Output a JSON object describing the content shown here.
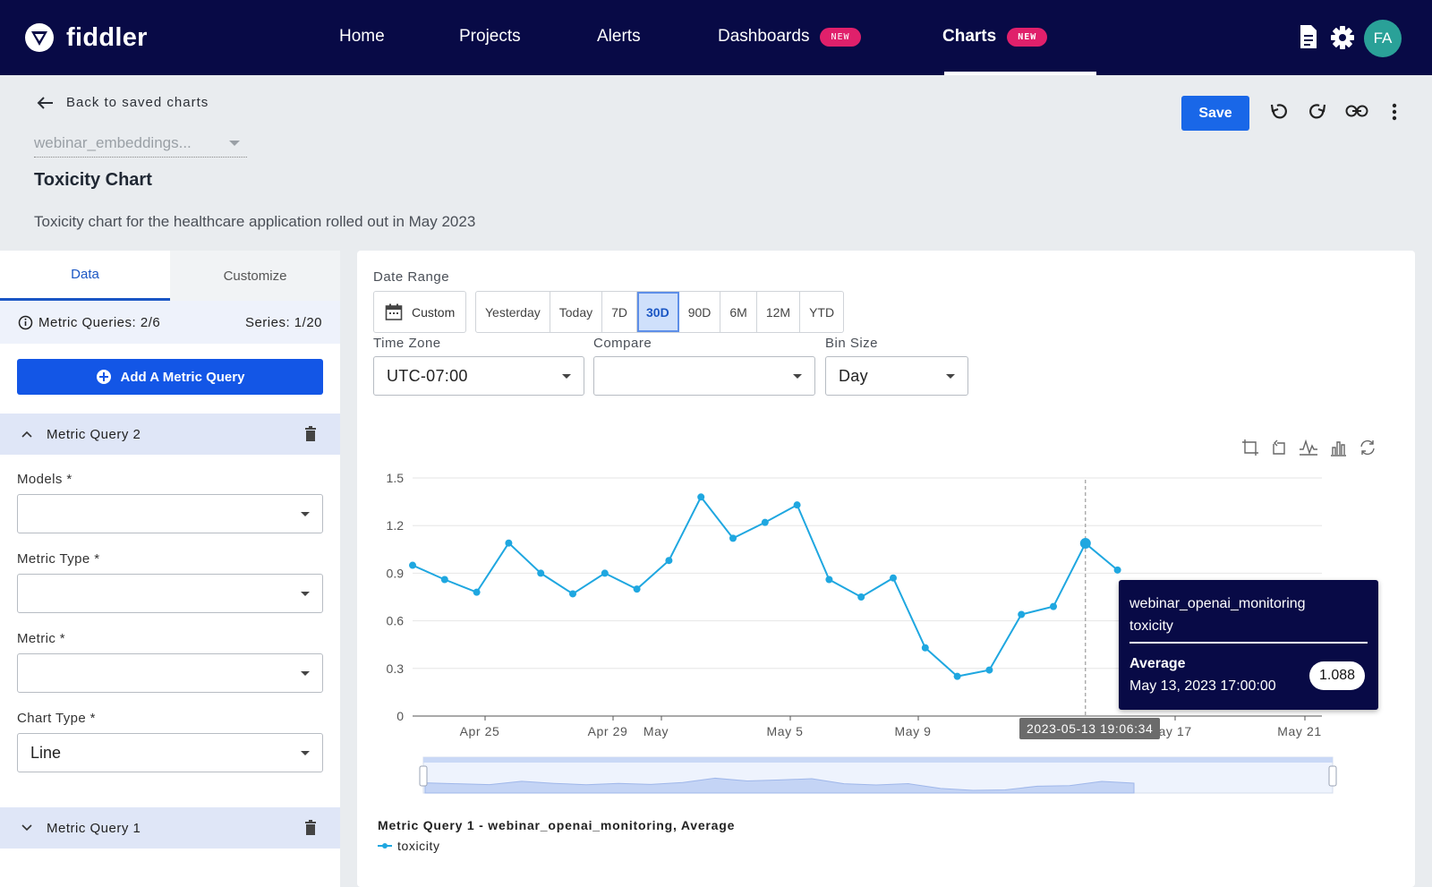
{
  "nav": {
    "logo_text": "fiddler",
    "items": [
      {
        "label": "Home",
        "badge": ""
      },
      {
        "label": "Projects",
        "badge": ""
      },
      {
        "label": "Alerts",
        "badge": ""
      },
      {
        "label": "Dashboards",
        "badge": "NEW"
      },
      {
        "label": "Charts",
        "badge": "NEW"
      }
    ],
    "active": "Charts",
    "icons": [
      "document-icon",
      "gear-icon"
    ],
    "avatar": "FA"
  },
  "header": {
    "back_label": "Back to saved charts",
    "model": "webinar_embeddings...",
    "title": "Toxicity Chart",
    "description": "Toxicity chart for the healthcare application rolled out in May 2023",
    "save_label": "Save"
  },
  "left": {
    "tabs": [
      "Data",
      "Customize"
    ],
    "active_tab": "Data",
    "metric_queries": "Metric Queries: 2/6",
    "series": "Series: 1/20",
    "add_label": "Add A Metric Query",
    "query2": "Metric Query 2",
    "query1": "Metric Query 1",
    "fields": {
      "models_label": "Models *",
      "metric_type_label": "Metric Type *",
      "metric_label": "Metric *",
      "chart_type_label": "Chart Type *",
      "chart_type_value": "Line"
    }
  },
  "controls": {
    "date_range_label": "Date Range",
    "custom_label": "Custom",
    "ranges": [
      "Yesterday",
      "Today",
      "7D",
      "30D",
      "90D",
      "6M",
      "12M",
      "YTD"
    ],
    "active_range": "30D",
    "time_zone_label": "Time Zone",
    "time_zone": "UTC-07:00",
    "compare_label": "Compare",
    "compare": "",
    "bin_size_label": "Bin Size",
    "bin_size": "Day"
  },
  "chart_data": {
    "type": "line",
    "series": [
      {
        "name": "toxicity",
        "x": [
          "Apr 22",
          "Apr 23",
          "Apr 24",
          "Apr 25",
          "Apr 26",
          "Apr 27",
          "Apr 28",
          "Apr 29",
          "Apr 30",
          "May 1",
          "May 2",
          "May 3",
          "May 4",
          "May 5",
          "May 6",
          "May 7",
          "May 8",
          "May 9",
          "May 10",
          "May 11",
          "May 12",
          "May 13",
          "May 14"
        ],
        "values": [
          0.95,
          0.86,
          0.78,
          1.09,
          0.9,
          0.77,
          0.9,
          0.8,
          0.98,
          1.38,
          1.12,
          1.22,
          1.33,
          0.86,
          0.75,
          0.87,
          0.43,
          0.25,
          0.29,
          0.64,
          0.69,
          1.088,
          0.92
        ]
      }
    ],
    "x_tick_labels": [
      "Apr 25",
      "Apr 29",
      "May",
      "May 5",
      "May 9",
      "May 17",
      "May 21"
    ],
    "y_ticks": [
      "0",
      "0.3",
      "0.6",
      "0.9",
      "1.2",
      "1.5"
    ],
    "ylim": [
      0,
      1.5
    ],
    "grid": true,
    "color": "#1fa7e0",
    "legend_title": "Metric Query 1 - webinar_openai_monitoring, Average",
    "legend_item": "toxicity",
    "cursor_label": "2023-05-13 19:06:34",
    "tooltip": {
      "line1": "webinar_openai_monitoring",
      "line2": "toxicity",
      "stat": "Average",
      "date": "May 13, 2023 17:00:00",
      "value": "1.088"
    },
    "toolbox_icons": [
      "zoom-icon",
      "zoom-reset-icon",
      "line-type-icon",
      "bar-type-icon",
      "restore-icon"
    ]
  }
}
